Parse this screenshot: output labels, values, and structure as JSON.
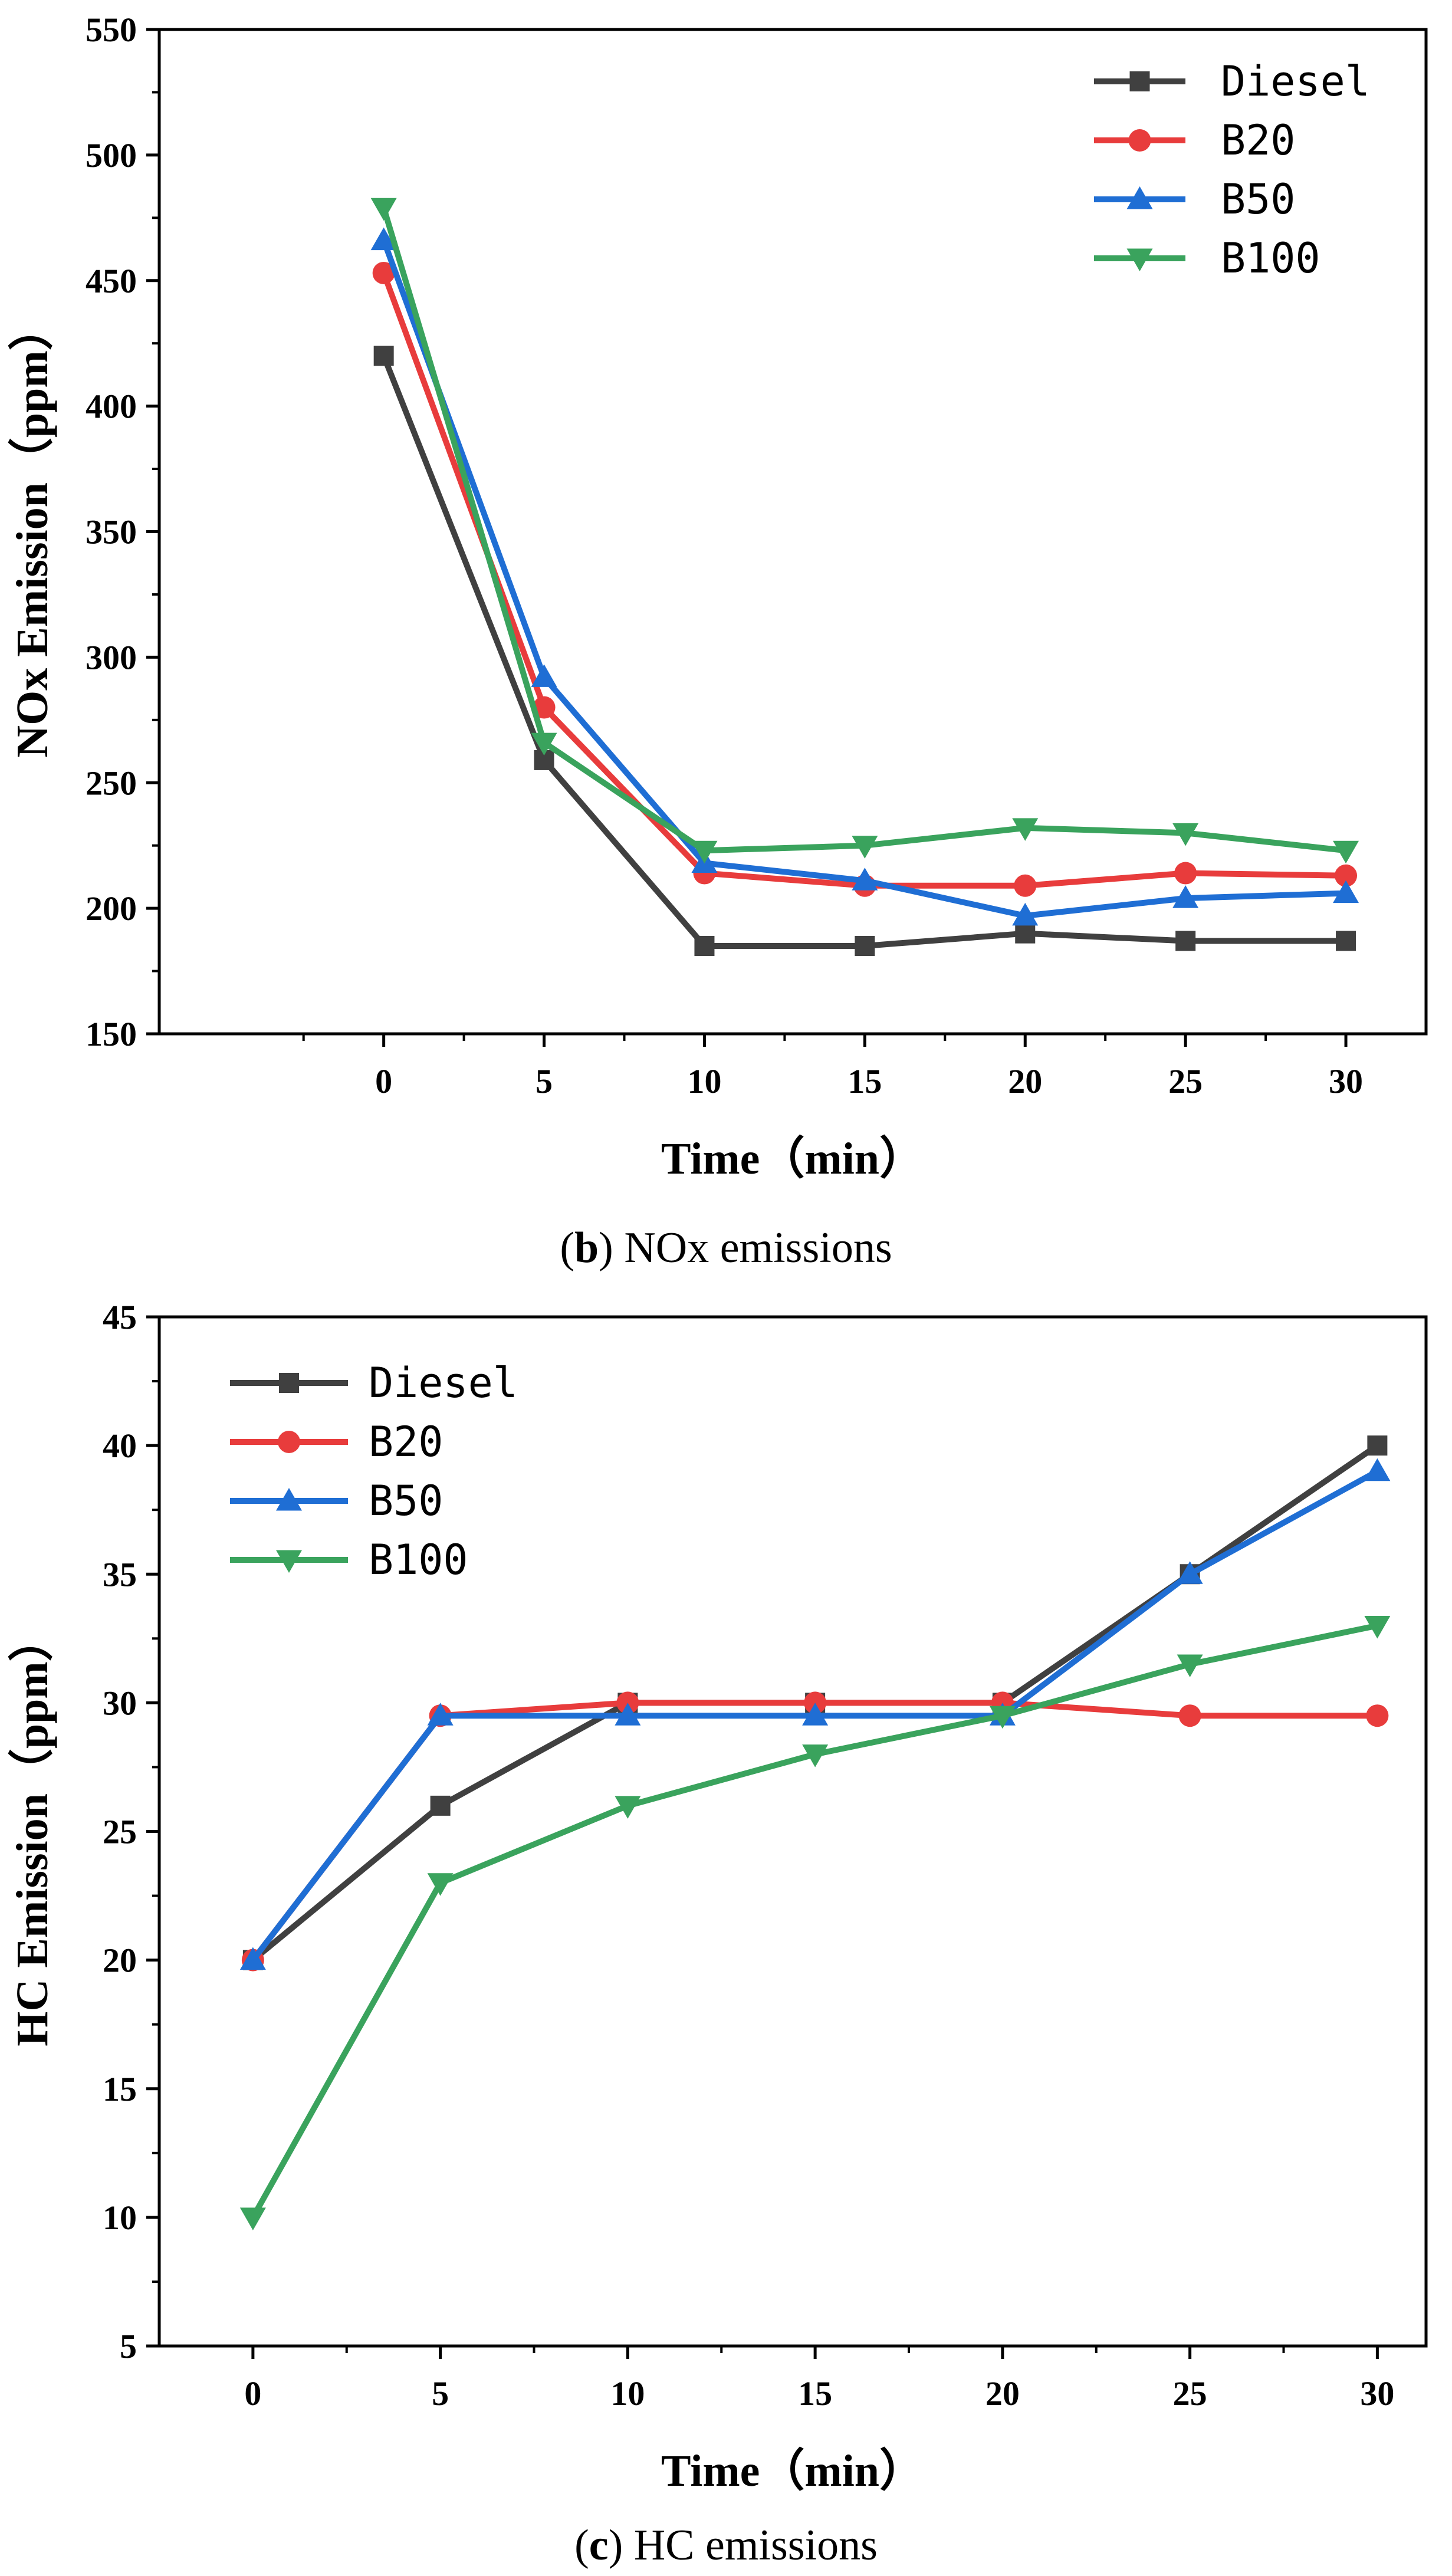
{
  "chart_data": [
    {
      "type": "line",
      "id": "nox",
      "caption_letter": "b",
      "caption_text": "NOx emissions",
      "xlabel": "Time（min）",
      "ylabel": "NOx Emission（ppm）",
      "x": [
        0,
        5,
        10,
        15,
        20,
        25,
        30
      ],
      "xlim": [
        -7,
        32.5
      ],
      "ylim": [
        150,
        550
      ],
      "xticks": [
        0,
        5,
        10,
        15,
        20,
        25,
        30
      ],
      "yticks": [
        150,
        200,
        250,
        300,
        350,
        400,
        450,
        500,
        550
      ],
      "legend_position": "top-right",
      "series": [
        {
          "name": "Diesel",
          "color": "#404040",
          "marker": "square",
          "values": [
            420,
            259,
            185,
            185,
            190,
            187,
            187
          ]
        },
        {
          "name": "B20",
          "color": "#e83c3c",
          "marker": "circle",
          "values": [
            453,
            280,
            214,
            209,
            209,
            214,
            213
          ]
        },
        {
          "name": "B50",
          "color": "#1f6ed4",
          "marker": "triangle-up",
          "values": [
            466,
            292,
            218,
            211,
            197,
            204,
            206
          ]
        },
        {
          "name": "B100",
          "color": "#3aa35d",
          "marker": "triangle-down",
          "values": [
            479,
            266,
            223,
            225,
            232,
            230,
            223
          ]
        }
      ]
    },
    {
      "type": "line",
      "id": "hc",
      "caption_letter": "c",
      "caption_text": "HC emissions",
      "xlabel": "Time（min）",
      "ylabel": "HC Emission（ppm）",
      "x": [
        0,
        5,
        10,
        15,
        20,
        25,
        30
      ],
      "xlim": [
        -2.5,
        31.3
      ],
      "ylim": [
        5,
        45
      ],
      "xticks": [
        0,
        5,
        10,
        15,
        20,
        25,
        30
      ],
      "yticks": [
        5,
        10,
        15,
        20,
        25,
        30,
        35,
        40,
        45
      ],
      "legend_position": "top-left",
      "series": [
        {
          "name": "Diesel",
          "color": "#404040",
          "marker": "square",
          "values": [
            20,
            26,
            30,
            30,
            30,
            35,
            40
          ]
        },
        {
          "name": "B20",
          "color": "#e83c3c",
          "marker": "circle",
          "values": [
            20,
            29.5,
            30,
            30,
            30,
            29.5,
            29.5
          ]
        },
        {
          "name": "B50",
          "color": "#1f6ed4",
          "marker": "triangle-up",
          "values": [
            20,
            29.5,
            29.5,
            29.5,
            29.5,
            35,
            39
          ]
        },
        {
          "name": "B100",
          "color": "#3aa35d",
          "marker": "triangle-down",
          "values": [
            10,
            23,
            26,
            28,
            29.5,
            31.5,
            33
          ]
        }
      ]
    }
  ]
}
